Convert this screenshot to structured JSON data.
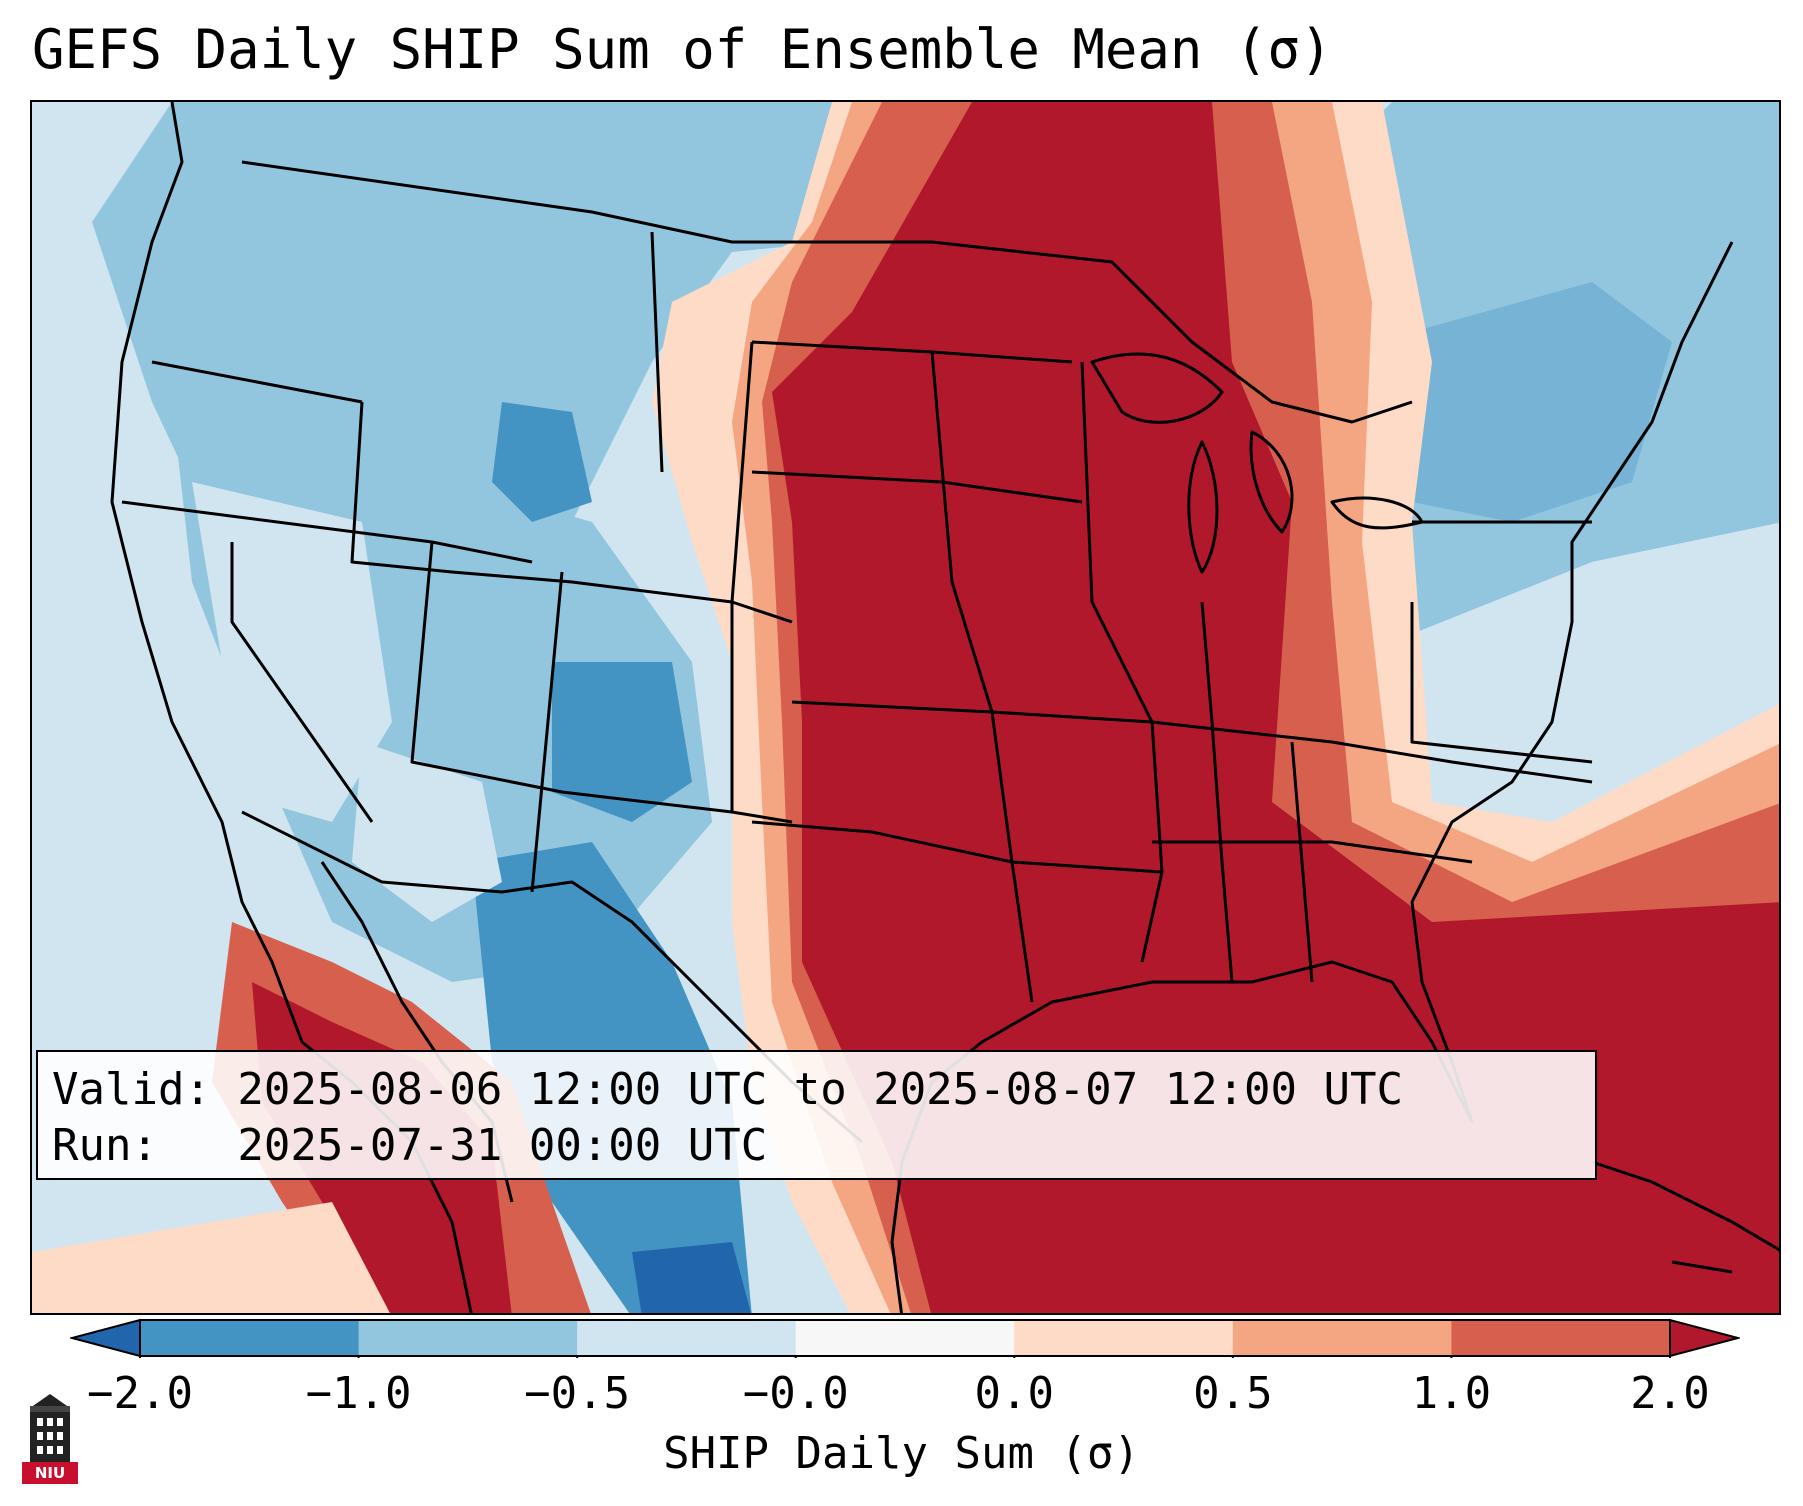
{
  "title": "GEFS Daily SHIP Sum of Ensemble Mean (σ)",
  "info": {
    "valid_line": "Valid: 2025-08-06 12:00 UTC to 2025-08-07 12:00 UTC",
    "run_line": "Run:   2025-07-31 00:00 UTC"
  },
  "colorbar": {
    "label": "SHIP Daily Sum (σ)",
    "ticks": [
      "−2.0",
      "−1.0",
      "−0.5",
      "−0.0",
      "0.0",
      "0.5",
      "1.0",
      "2.0"
    ],
    "colors": [
      "#2166ac",
      "#4393c3",
      "#92c5de",
      "#d1e5f0",
      "#f7f7f7",
      "#fddbc7",
      "#f4a582",
      "#d6604d",
      "#b2182b"
    ],
    "extend": "both"
  },
  "logo": {
    "text": "NIU",
    "icon": "niu-tower-icon"
  }
}
